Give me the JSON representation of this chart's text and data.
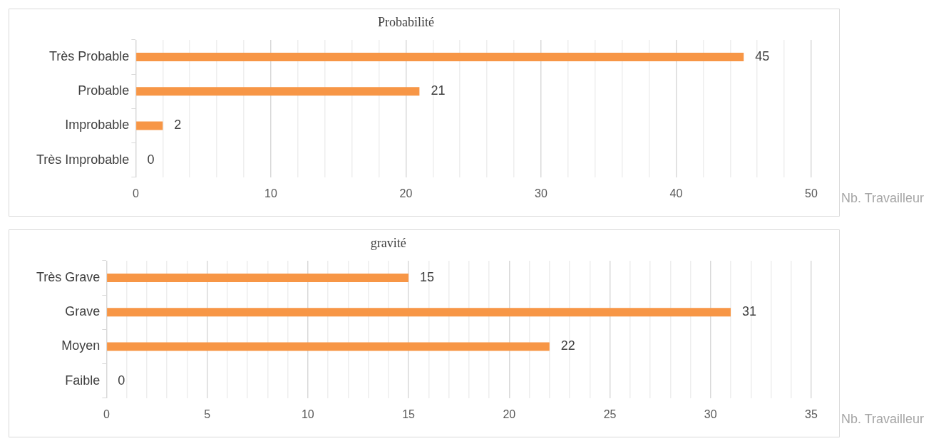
{
  "chart_data": [
    {
      "type": "bar",
      "orientation": "horizontal",
      "title": "Probabilité",
      "xlabel": "Nb. Travailleur",
      "categories": [
        "Très Probable",
        "Probable",
        "Improbable",
        "Très Improbable"
      ],
      "values": [
        45,
        21,
        2,
        0
      ],
      "color": "#f79646",
      "xlim": [
        0,
        50
      ],
      "xticks": [
        0,
        {
          "value": 2,
          "label": null
        },
        {
          "value": 4,
          "label": null
        },
        {
          "value": 6,
          "label": null
        },
        {
          "value": 8,
          "label": null
        },
        10,
        {
          "value": 12,
          "label": null
        },
        {
          "value": 14,
          "label": null
        },
        {
          "value": 16,
          "label": null
        },
        {
          "value": 18,
          "label": null
        },
        20,
        {
          "value": 22,
          "label": null
        },
        {
          "value": 24,
          "label": null
        },
        {
          "value": 26,
          "label": null
        },
        {
          "value": 28,
          "label": null
        },
        30,
        {
          "value": 32,
          "label": null
        },
        {
          "value": 34,
          "label": null
        },
        {
          "value": 36,
          "label": null
        },
        {
          "value": 38,
          "label": null
        },
        40,
        {
          "value": 42,
          "label": null
        },
        {
          "value": 44,
          "label": null
        },
        {
          "value": 46,
          "label": null
        },
        {
          "value": 48,
          "label": null
        },
        50
      ],
      "grid": "x",
      "data_labels": true
    },
    {
      "type": "bar",
      "orientation": "horizontal",
      "title": "gravité",
      "xlabel": "Nb. Travailleur",
      "categories": [
        "Très Grave",
        "Grave",
        "Moyen",
        "Faible"
      ],
      "values": [
        15,
        31,
        22,
        0
      ],
      "color": "#f79646",
      "xlim": [
        0,
        35
      ],
      "xticks": [
        0,
        {
          "value": 1,
          "label": null
        },
        {
          "value": 2,
          "label": null
        },
        {
          "value": 3,
          "label": null
        },
        {
          "value": 4,
          "label": null
        },
        5,
        {
          "value": 6,
          "label": null
        },
        {
          "value": 7,
          "label": null
        },
        {
          "value": 8,
          "label": null
        },
        {
          "value": 9,
          "label": null
        },
        10,
        {
          "value": 11,
          "label": null
        },
        {
          "value": 12,
          "label": null
        },
        {
          "value": 13,
          "label": null
        },
        {
          "value": 14,
          "label": null
        },
        15,
        {
          "value": 16,
          "label": null
        },
        {
          "value": 17,
          "label": null
        },
        {
          "value": 18,
          "label": null
        },
        {
          "value": 19,
          "label": null
        },
        20,
        {
          "value": 21,
          "label": null
        },
        {
          "value": 22,
          "label": null
        },
        {
          "value": 23,
          "label": null
        },
        {
          "value": 24,
          "label": null
        },
        25,
        {
          "value": 26,
          "label": null
        },
        {
          "value": 27,
          "label": null
        },
        {
          "value": 28,
          "label": null
        },
        {
          "value": 29,
          "label": null
        },
        30,
        {
          "value": 31,
          "label": null
        },
        {
          "value": 32,
          "label": null
        },
        {
          "value": 33,
          "label": null
        },
        {
          "value": 34,
          "label": null
        },
        35
      ],
      "grid": "x",
      "data_labels": true
    }
  ]
}
